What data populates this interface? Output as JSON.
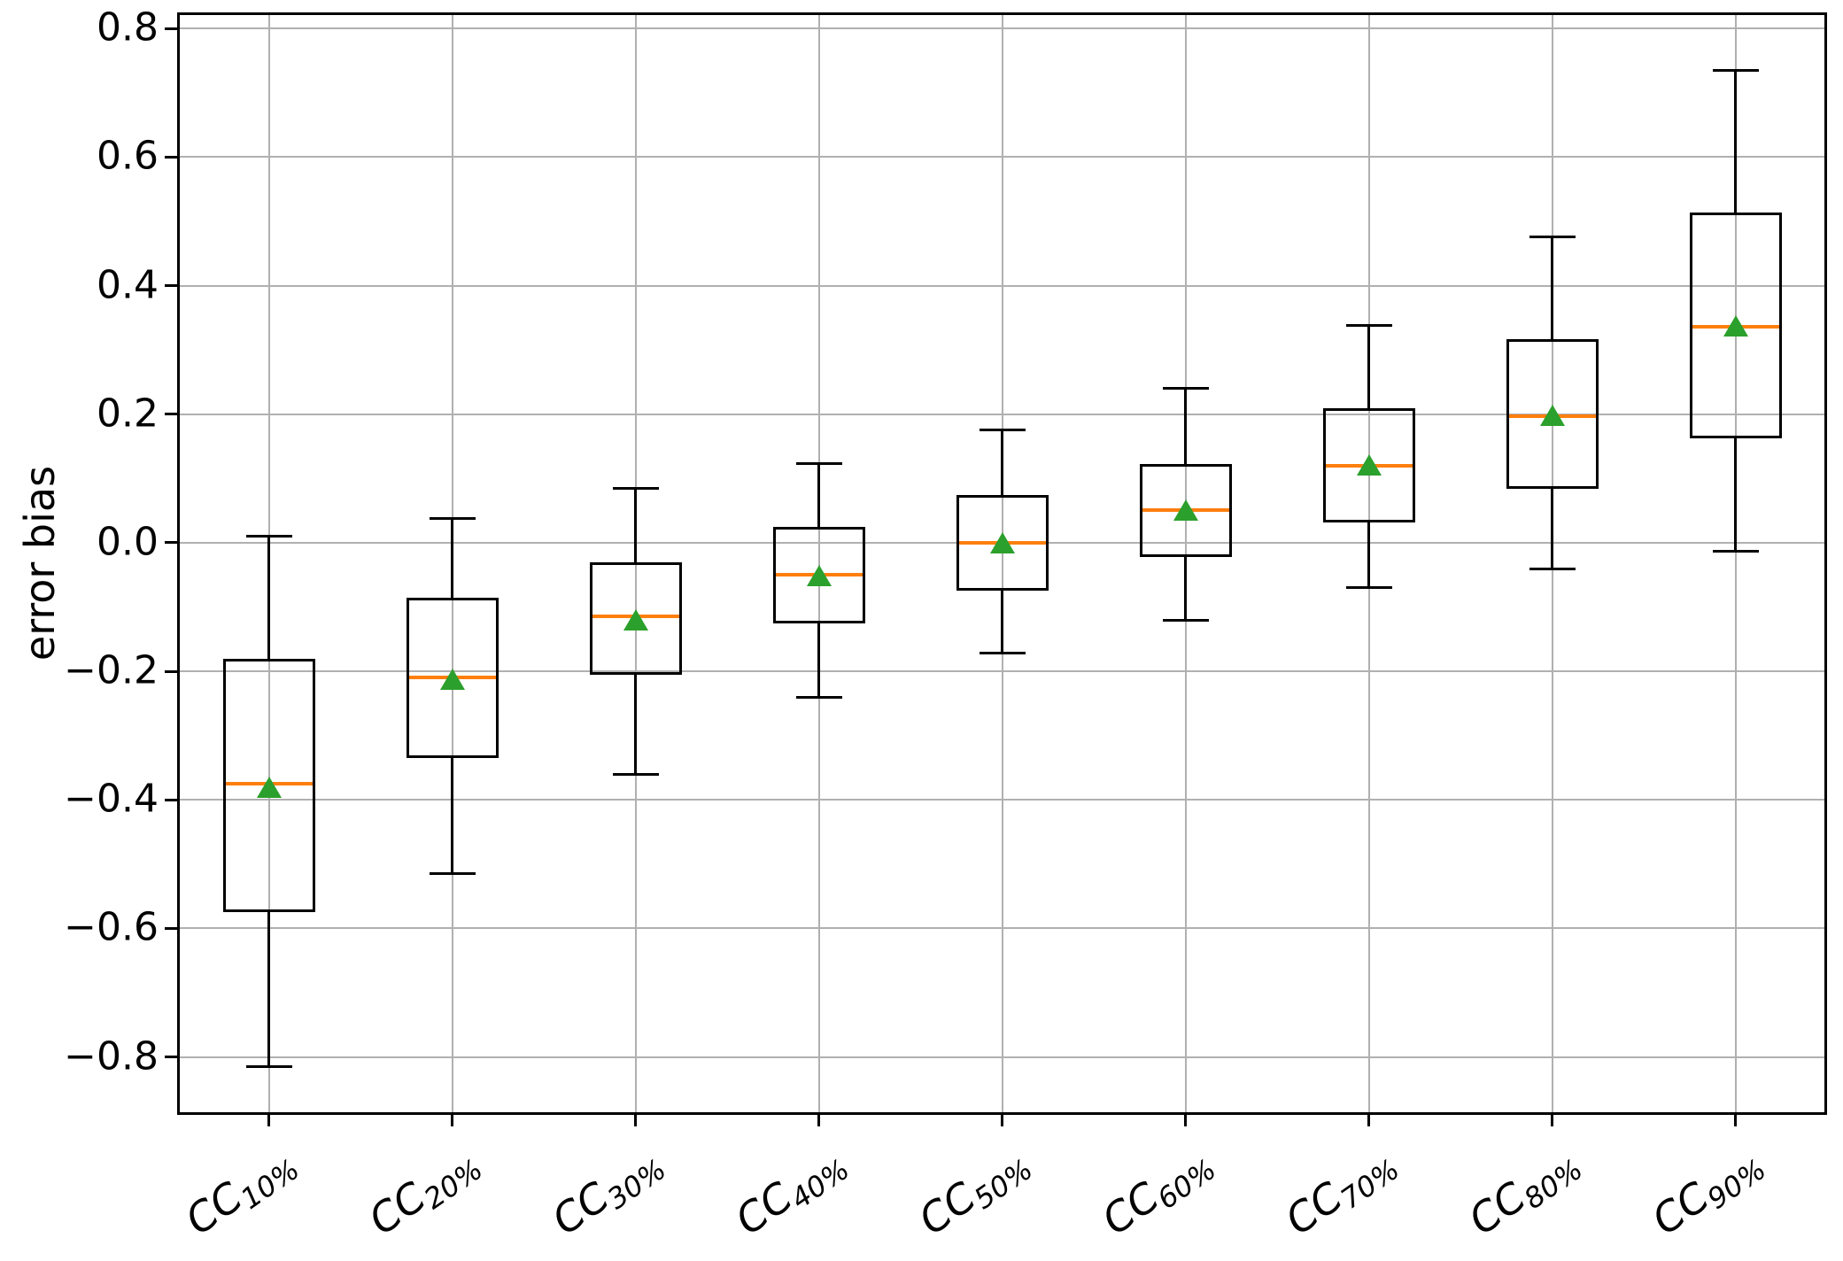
{
  "figure": {
    "background": "#ffffff",
    "colors": {
      "box_line": "#000000",
      "median": "#ff7f0e",
      "mean_marker": "#2ca02c",
      "grid": "#b0b0b0",
      "spine": "#000000",
      "text": "#000000"
    }
  },
  "chart_data": {
    "type": "boxplot",
    "title": "",
    "xlabel": "",
    "ylabel": "error bias",
    "ylim": [
      -0.89,
      0.825
    ],
    "grid": true,
    "mean_marker_shape": "triangle-up",
    "yticks": [
      {
        "value": 0.8,
        "label": "0.8"
      },
      {
        "value": 0.6,
        "label": "0.6"
      },
      {
        "value": 0.4,
        "label": "0.4"
      },
      {
        "value": 0.2,
        "label": "0.2"
      },
      {
        "value": 0.0,
        "label": "0.0"
      },
      {
        "value": -0.2,
        "label": "−0.2"
      },
      {
        "value": -0.4,
        "label": "−0.4"
      },
      {
        "value": -0.6,
        "label": "−0.6"
      },
      {
        "value": -0.8,
        "label": "−0.8"
      }
    ],
    "categories": [
      "CC10%",
      "CC20%",
      "CC30%",
      "CC40%",
      "CC50%",
      "CC60%",
      "CC70%",
      "CC80%",
      "CC90%"
    ],
    "series": [
      {
        "label": "CC10%",
        "label_base": "CC",
        "label_sub": "10%",
        "whislo": -0.815,
        "q1": -0.575,
        "med": -0.375,
        "mean": -0.38,
        "q3": -0.18,
        "whishi": 0.01
      },
      {
        "label": "CC20%",
        "label_base": "CC",
        "label_sub": "20%",
        "whislo": -0.515,
        "q1": -0.335,
        "med": -0.21,
        "mean": -0.212,
        "q3": -0.085,
        "whishi": 0.038
      },
      {
        "label": "CC30%",
        "label_base": "CC",
        "label_sub": "30%",
        "whislo": -0.36,
        "q1": -0.205,
        "med": -0.115,
        "mean": -0.12,
        "q3": -0.03,
        "whishi": 0.085
      },
      {
        "label": "CC40%",
        "label_base": "CC",
        "label_sub": "40%",
        "whislo": -0.24,
        "q1": -0.125,
        "med": -0.05,
        "mean": -0.051,
        "q3": 0.025,
        "whishi": 0.123
      },
      {
        "label": "CC50%",
        "label_base": "CC",
        "label_sub": "50%",
        "whislo": -0.172,
        "q1": -0.075,
        "med": 0.0,
        "mean": 0.0,
        "q3": 0.074,
        "whishi": 0.175
      },
      {
        "label": "CC60%",
        "label_base": "CC",
        "label_sub": "60%",
        "whislo": -0.12,
        "q1": -0.022,
        "med": 0.051,
        "mean": 0.051,
        "q3": 0.123,
        "whishi": 0.24
      },
      {
        "label": "CC70%",
        "label_base": "CC",
        "label_sub": "70%",
        "whislo": -0.07,
        "q1": 0.032,
        "med": 0.12,
        "mean": 0.121,
        "q3": 0.209,
        "whishi": 0.338
      },
      {
        "label": "CC80%",
        "label_base": "CC",
        "label_sub": "80%",
        "whislo": -0.041,
        "q1": 0.084,
        "med": 0.197,
        "mean": 0.198,
        "q3": 0.317,
        "whishi": 0.476
      },
      {
        "label": "CC90%",
        "label_base": "CC",
        "label_sub": "90%",
        "whislo": -0.013,
        "q1": 0.162,
        "med": 0.336,
        "mean": 0.337,
        "q3": 0.514,
        "whishi": 0.735
      }
    ]
  }
}
